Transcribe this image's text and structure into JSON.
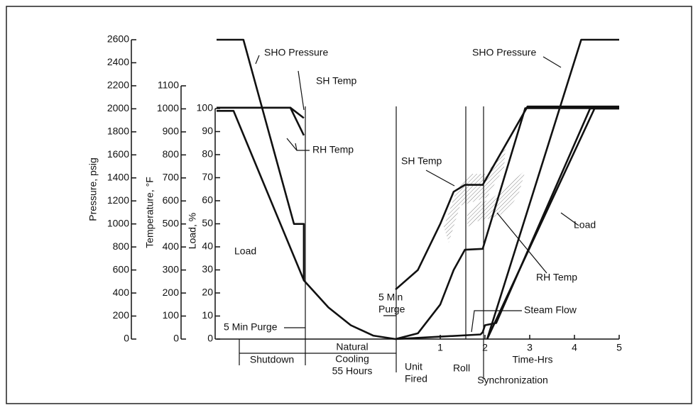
{
  "chart_data": {
    "type": "line",
    "xlabel": "Time-Hrs",
    "xlim": [
      -4,
      5
    ],
    "xticks": [
      1,
      2,
      3,
      4,
      5
    ],
    "ylabel": "Load, %",
    "ylim": [
      0,
      100
    ],
    "yticks": [
      0,
      10,
      20,
      30,
      40,
      50,
      60,
      70,
      80,
      90,
      100
    ],
    "y2label": "Temperature, °F",
    "y2lim": [
      0,
      1100
    ],
    "y2ticks": [
      0,
      100,
      200,
      300,
      400,
      500,
      600,
      700,
      800,
      900,
      1000,
      1100
    ],
    "y3label": "Pressure, psig",
    "y3lim": [
      0,
      2600
    ],
    "y3ticks": [
      0,
      200,
      400,
      600,
      800,
      1000,
      1200,
      1400,
      1600,
      1800,
      2000,
      2200,
      2400,
      2600
    ],
    "grid": false,
    "series": [
      {
        "name": "SHO Pressure",
        "color": "#111111",
        "axis": "y3",
        "x": [
          -4,
          -3.4,
          -2.27,
          -2.05,
          -2.05,
          -1.5,
          -1,
          -0.5,
          0,
          null,
          2.05,
          4.15,
          5
        ],
        "values": [
          2600,
          2600,
          1000,
          1000,
          510,
          275,
          120,
          30,
          0,
          null,
          0,
          2600,
          2600
        ]
      },
      {
        "name": "SH Temp",
        "color": "#111111",
        "axis": "y2",
        "x": [
          -4,
          -2.35,
          -2.05,
          null,
          0,
          0.5,
          1.0,
          1.3,
          1.55,
          1.95,
          2.95,
          5
        ],
        "values": [
          1005,
          1005,
          960,
          null,
          215,
          300,
          500,
          640,
          670,
          670,
          1010,
          1010
        ]
      },
      {
        "name": "RH Temp",
        "color": "#111111",
        "axis": "y2",
        "x": [
          -4,
          -2.35,
          -2.05,
          null,
          0,
          0.5,
          1.0,
          1.3,
          1.55,
          1.95,
          2.9,
          5
        ],
        "values": [
          1005,
          1005,
          885,
          null,
          0,
          25,
          150,
          300,
          388,
          392,
          1003,
          1003
        ]
      },
      {
        "name": "Load",
        "color": "#111111",
        "axis": "y",
        "x": [
          -4,
          -3.62,
          -2.05,
          null,
          2.05,
          4.45,
          5
        ],
        "values": [
          99,
          99,
          25.5,
          null,
          0,
          100,
          100
        ]
      },
      {
        "name": "Steam Flow",
        "color": "#111111",
        "axis": "y",
        "x": [
          0,
          1.9,
          1.95,
          2.0,
          2.25,
          4.35,
          5
        ],
        "values": [
          0,
          2,
          3,
          6,
          7,
          100,
          100
        ]
      }
    ],
    "annotations": [
      "SHO Pressure",
      "SH Temp",
      "RH Temp",
      "Load",
      "5 Min Purge",
      [
        "5 Min",
        "Purge"
      ],
      "Shutdown",
      [
        "Natural",
        "Cooling",
        "55 Hours"
      ],
      [
        "Unit",
        "Fired"
      ],
      "Roll",
      "Synchronization"
    ]
  }
}
